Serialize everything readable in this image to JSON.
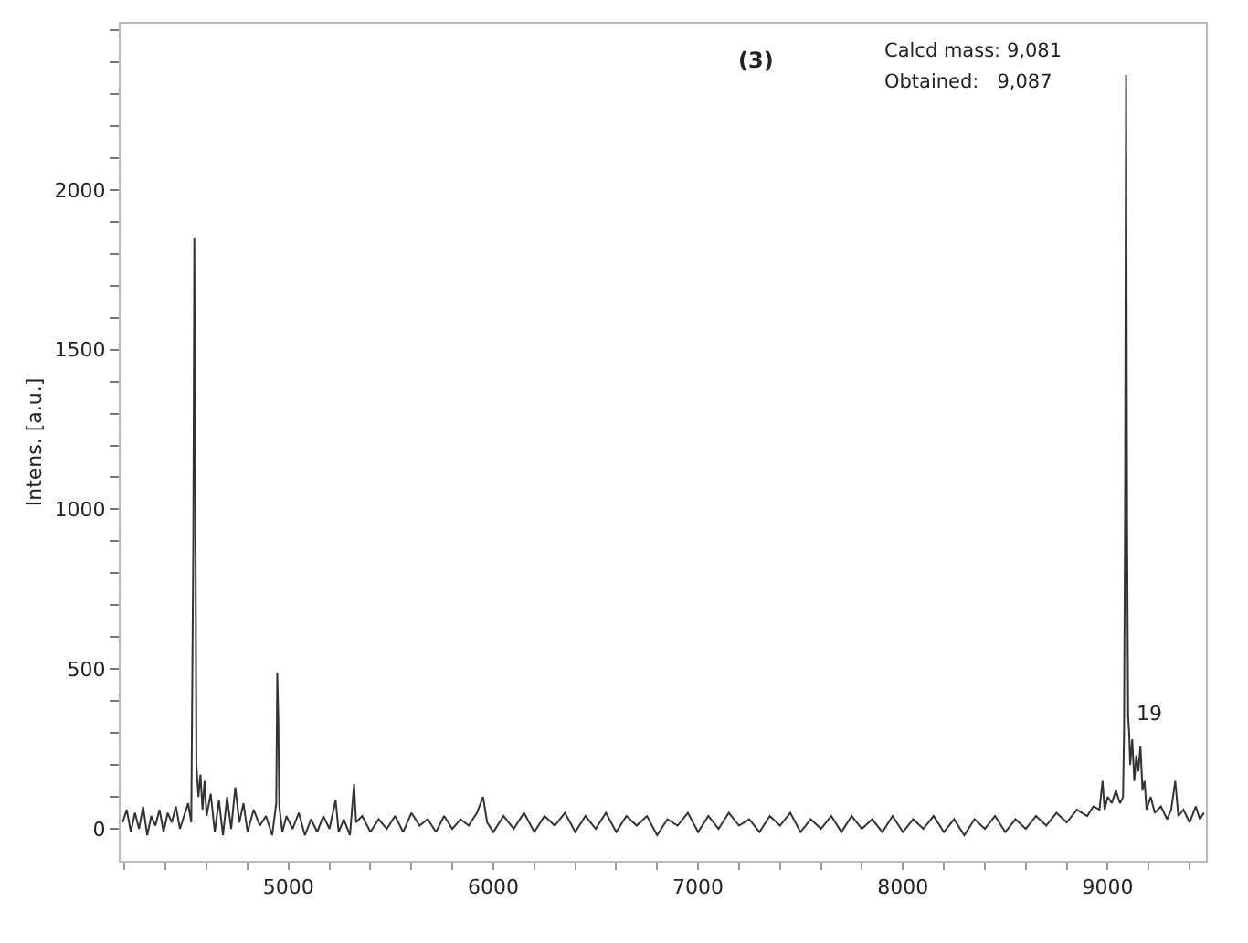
{
  "chart_data": {
    "type": "line",
    "ylabel": "Intens. [a.u.]",
    "annotations": [
      "(3)",
      "Calcd mass: 9,081",
      "Obtained:   9,087",
      {
        "text": "19",
        "x": 9095,
        "y": 310
      }
    ],
    "x": [
      4190,
      4210,
      4230,
      4250,
      4270,
      4290,
      4310,
      4330,
      4350,
      4370,
      4390,
      4410,
      4430,
      4450,
      4470,
      4490,
      4510,
      4525,
      4535,
      4540,
      4545,
      4550,
      4560,
      4570,
      4580,
      4590,
      4600,
      4620,
      4640,
      4660,
      4680,
      4700,
      4720,
      4740,
      4760,
      4780,
      4800,
      4830,
      4860,
      4890,
      4920,
      4940,
      4945,
      4950,
      4955,
      4970,
      4990,
      5020,
      5050,
      5080,
      5110,
      5140,
      5170,
      5200,
      5230,
      5245,
      5270,
      5300,
      5320,
      5330,
      5360,
      5400,
      5440,
      5480,
      5520,
      5560,
      5600,
      5640,
      5680,
      5720,
      5760,
      5800,
      5840,
      5880,
      5920,
      5950,
      5970,
      6000,
      6050,
      6100,
      6150,
      6200,
      6250,
      6300,
      6350,
      6400,
      6450,
      6500,
      6550,
      6600,
      6650,
      6700,
      6750,
      6800,
      6850,
      6900,
      6950,
      7000,
      7050,
      7100,
      7150,
      7200,
      7250,
      7300,
      7350,
      7400,
      7450,
      7500,
      7550,
      7600,
      7650,
      7700,
      7750,
      7800,
      7850,
      7900,
      7950,
      8000,
      8050,
      8100,
      8150,
      8200,
      8250,
      8300,
      8350,
      8400,
      8450,
      8500,
      8550,
      8600,
      8650,
      8700,
      8750,
      8800,
      8850,
      8900,
      8930,
      8960,
      8975,
      8985,
      9000,
      9020,
      9040,
      9060,
      9075,
      9080,
      9085,
      9090,
      9095,
      9100,
      9105,
      9110,
      9120,
      9130,
      9140,
      9150,
      9160,
      9170,
      9180,
      9190,
      9210,
      9230,
      9260,
      9290,
      9310,
      9330,
      9345,
      9370,
      9400,
      9430,
      9450,
      9470
    ],
    "series": [
      {
        "color": "#333333",
        "values": [
          20,
          60,
          -10,
          50,
          0,
          70,
          -20,
          40,
          10,
          60,
          -10,
          50,
          20,
          70,
          0,
          40,
          80,
          20,
          900,
          1850,
          1050,
          200,
          100,
          170,
          60,
          150,
          40,
          110,
          -10,
          90,
          -20,
          100,
          0,
          130,
          20,
          80,
          -10,
          60,
          10,
          40,
          -20,
          80,
          490,
          350,
          70,
          -10,
          40,
          0,
          50,
          -20,
          30,
          -10,
          40,
          0,
          90,
          -10,
          30,
          -20,
          140,
          20,
          40,
          -10,
          30,
          0,
          40,
          -10,
          50,
          10,
          30,
          -10,
          40,
          0,
          30,
          10,
          50,
          100,
          20,
          -10,
          40,
          0,
          50,
          -10,
          40,
          10,
          50,
          -10,
          40,
          0,
          50,
          -10,
          40,
          10,
          40,
          -20,
          30,
          10,
          50,
          -10,
          40,
          0,
          50,
          10,
          30,
          -10,
          40,
          10,
          50,
          -10,
          30,
          0,
          40,
          -10,
          40,
          0,
          30,
          -10,
          40,
          -10,
          30,
          0,
          40,
          -10,
          30,
          -20,
          30,
          0,
          40,
          -10,
          30,
          0,
          40,
          10,
          50,
          20,
          60,
          40,
          70,
          60,
          150,
          60,
          100,
          80,
          120,
          80,
          100,
          300,
          1000,
          2360,
          940,
          350,
          300,
          200,
          280,
          150,
          230,
          180,
          260,
          120,
          150,
          60,
          100,
          50,
          70,
          30,
          60,
          150,
          40,
          60,
          20,
          70,
          30,
          50
        ]
      }
    ],
    "xlim": [
      4180,
      9480
    ],
    "xticks": [
      {
        "value": 4200,
        "label": null
      },
      {
        "value": 4400,
        "label": null
      },
      {
        "value": 4600,
        "label": null
      },
      {
        "value": 4800,
        "label": null
      },
      5000,
      {
        "value": 5200,
        "label": null
      },
      {
        "value": 5400,
        "label": null
      },
      {
        "value": 5600,
        "label": null
      },
      {
        "value": 5800,
        "label": null
      },
      6000,
      {
        "value": 6200,
        "label": null
      },
      {
        "value": 6400,
        "label": null
      },
      {
        "value": 6600,
        "label": null
      },
      {
        "value": 6800,
        "label": null
      },
      7000,
      {
        "value": 7200,
        "label": null
      },
      {
        "value": 7400,
        "label": null
      },
      {
        "value": 7600,
        "label": null
      },
      {
        "value": 7800,
        "label": null
      },
      8000,
      {
        "value": 8200,
        "label": null
      },
      {
        "value": 8400,
        "label": null
      },
      {
        "value": 8600,
        "label": null
      },
      {
        "value": 8800,
        "label": null
      },
      9000,
      {
        "value": 9200,
        "label": null
      },
      {
        "value": 9400,
        "label": null
      }
    ],
    "ylim": [
      -100,
      2520
    ],
    "yticks": [
      0,
      {
        "value": 100,
        "label": null
      },
      {
        "value": 200,
        "label": null
      },
      {
        "value": 300,
        "label": null
      },
      {
        "value": 400,
        "label": null
      },
      500,
      {
        "value": 600,
        "label": null
      },
      {
        "value": 700,
        "label": null
      },
      {
        "value": 800,
        "label": null
      },
      {
        "value": 900,
        "label": null
      },
      1000,
      {
        "value": 1100,
        "label": null
      },
      {
        "value": 1200,
        "label": null
      },
      {
        "value": 1300,
        "label": null
      },
      {
        "value": 1400,
        "label": null
      },
      1500,
      {
        "value": 1600,
        "label": null
      },
      {
        "value": 1700,
        "label": null
      },
      {
        "value": 1800,
        "label": null
      },
      {
        "value": 1900,
        "label": null
      },
      2000,
      {
        "value": 2100,
        "label": null
      },
      {
        "value": 2200,
        "label": null
      },
      {
        "value": 2300,
        "label": null
      },
      {
        "value": 2400,
        "label": null
      },
      {
        "value": 2500,
        "label": null
      }
    ],
    "grid": false,
    "marker": "none",
    "line_style": "solid"
  }
}
